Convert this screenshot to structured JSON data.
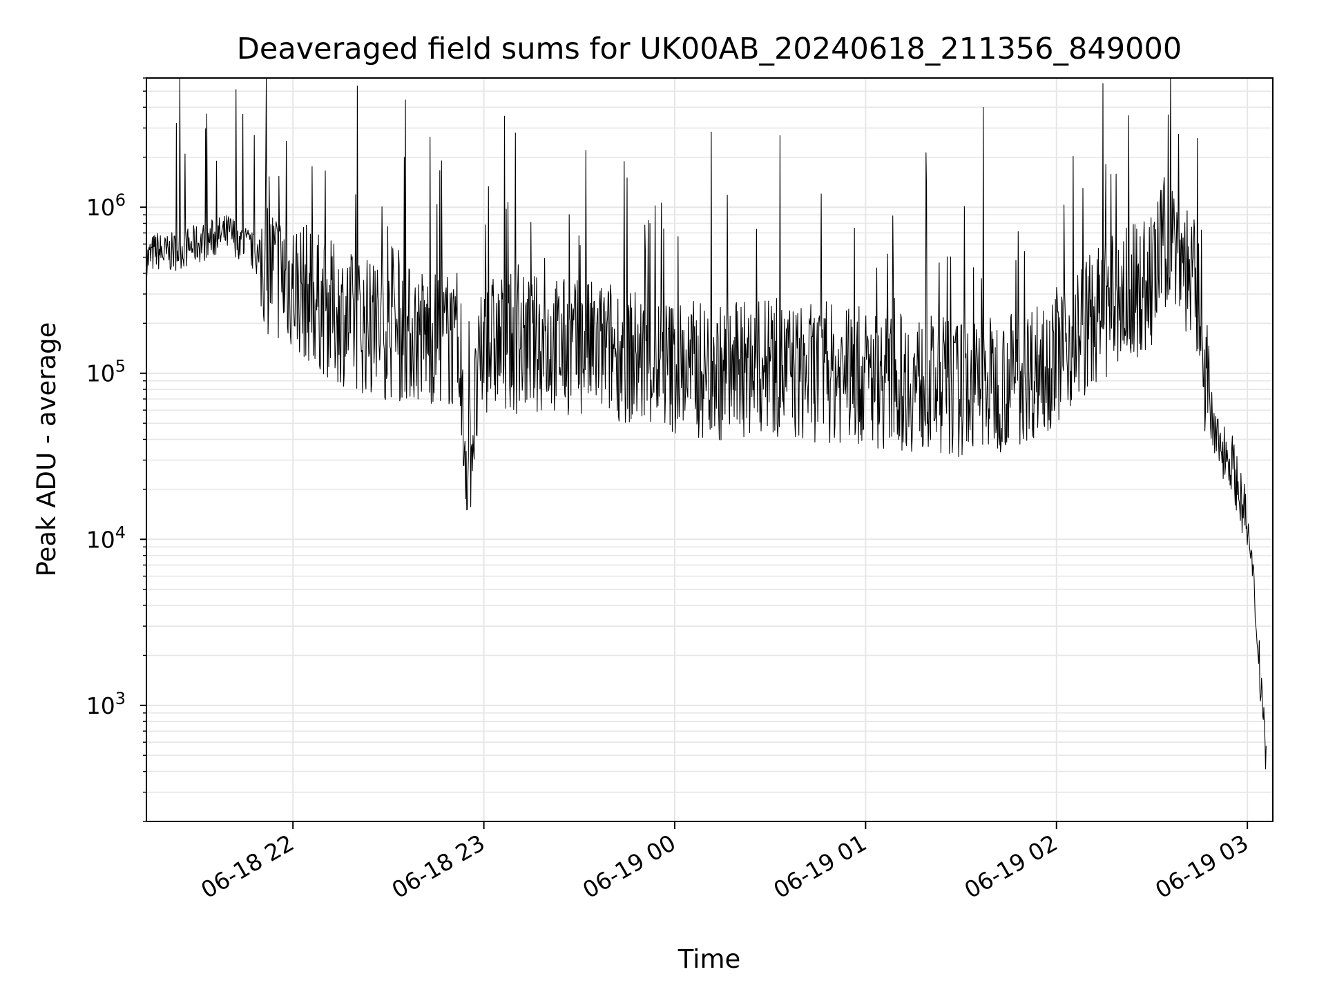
{
  "chart_data": {
    "type": "line",
    "title": "Deaveraged field sums for UK00AB_20240618_211356_849000",
    "xlabel": "Time",
    "ylabel": "Peak ADU - average",
    "yscale": "log",
    "ylim": [
      200,
      6000000
    ],
    "xlim": [
      "06-18 21:13:56",
      "06-19 03:08:00"
    ],
    "grid": true,
    "line_color": "#000000",
    "grid_color": "#e6e6e6",
    "x_ticks": [
      {
        "t": "06-18 22:00",
        "label": "06-18 22"
      },
      {
        "t": "06-18 23:00",
        "label": "06-18 23"
      },
      {
        "t": "06-19 00:00",
        "label": "06-19 00"
      },
      {
        "t": "06-19 01:00",
        "label": "06-19 01"
      },
      {
        "t": "06-19 02:00",
        "label": "06-19 02"
      },
      {
        "t": "06-19 03:00",
        "label": "06-19 03"
      }
    ],
    "y_ticks": [
      {
        "value": 1000,
        "base": "10",
        "exp": "3"
      },
      {
        "value": 10000,
        "base": "10",
        "exp": "4"
      },
      {
        "value": 100000,
        "base": "10",
        "exp": "5"
      },
      {
        "value": 1000000,
        "base": "10",
        "exp": "6"
      }
    ],
    "series": [
      {
        "points": [
          [
            "06-18 21:14",
            480000
          ],
          [
            "06-18 21:17",
            550000
          ],
          [
            "06-18 21:20",
            520000
          ],
          [
            "06-18 21:25",
            560000
          ],
          [
            "06-18 21:30",
            600000
          ],
          [
            "06-18 21:35",
            650000
          ],
          [
            "06-18 21:40",
            700000
          ],
          [
            "06-18 21:45",
            600000
          ],
          [
            "06-18 21:50",
            480000
          ],
          [
            "06-18 21:55",
            400000
          ],
          [
            "06-18 21:58",
            2500000
          ],
          [
            "06-18 22:00",
            350000
          ],
          [
            "06-18 22:05",
            300000
          ],
          [
            "06-18 22:10",
            250000
          ],
          [
            "06-18 22:20",
            200000
          ],
          [
            "06-18 22:30",
            180000
          ],
          [
            "06-18 22:35",
            2000000
          ],
          [
            "06-18 22:40",
            170000
          ],
          [
            "06-18 22:50",
            160000
          ],
          [
            "06-18 22:55",
            28000
          ],
          [
            "06-18 23:00",
            150000
          ],
          [
            "06-18 23:20",
            150000
          ],
          [
            "06-18 23:30",
            140000
          ],
          [
            "06-18 23:32",
            2200000
          ],
          [
            "06-18 23:40",
            140000
          ],
          [
            "06-18 23:45",
            1500000
          ],
          [
            "06-18 23:50",
            120000
          ],
          [
            "06-19 00:00",
            110000
          ],
          [
            "06-19 00:15",
            100000
          ],
          [
            "06-19 00:30",
            110000
          ],
          [
            "06-19 00:33",
            2700000
          ],
          [
            "06-19 00:40",
            100000
          ],
          [
            "06-19 00:50",
            100000
          ],
          [
            "06-19 01:00",
            95000
          ],
          [
            "06-19 01:10",
            90000
          ],
          [
            "06-19 01:20",
            85000
          ],
          [
            "06-19 01:30",
            80000
          ],
          [
            "06-19 01:37",
            4000000
          ],
          [
            "06-19 01:45",
            90000
          ],
          [
            "06-19 01:55",
            110000
          ],
          [
            "06-19 02:00",
            130000
          ],
          [
            "06-19 02:10",
            200000
          ],
          [
            "06-19 02:20",
            280000
          ],
          [
            "06-19 02:30",
            350000
          ],
          [
            "06-19 02:35",
            700000
          ],
          [
            "06-19 02:40",
            500000
          ],
          [
            "06-19 02:45",
            250000
          ],
          [
            "06-19 02:48",
            60000
          ],
          [
            "06-19 02:50",
            40000
          ],
          [
            "06-19 02:55",
            30000
          ],
          [
            "06-19 03:00",
            12000
          ],
          [
            "06-19 03:03",
            3000
          ],
          [
            "06-19 03:06",
            500
          ]
        ]
      }
    ]
  }
}
